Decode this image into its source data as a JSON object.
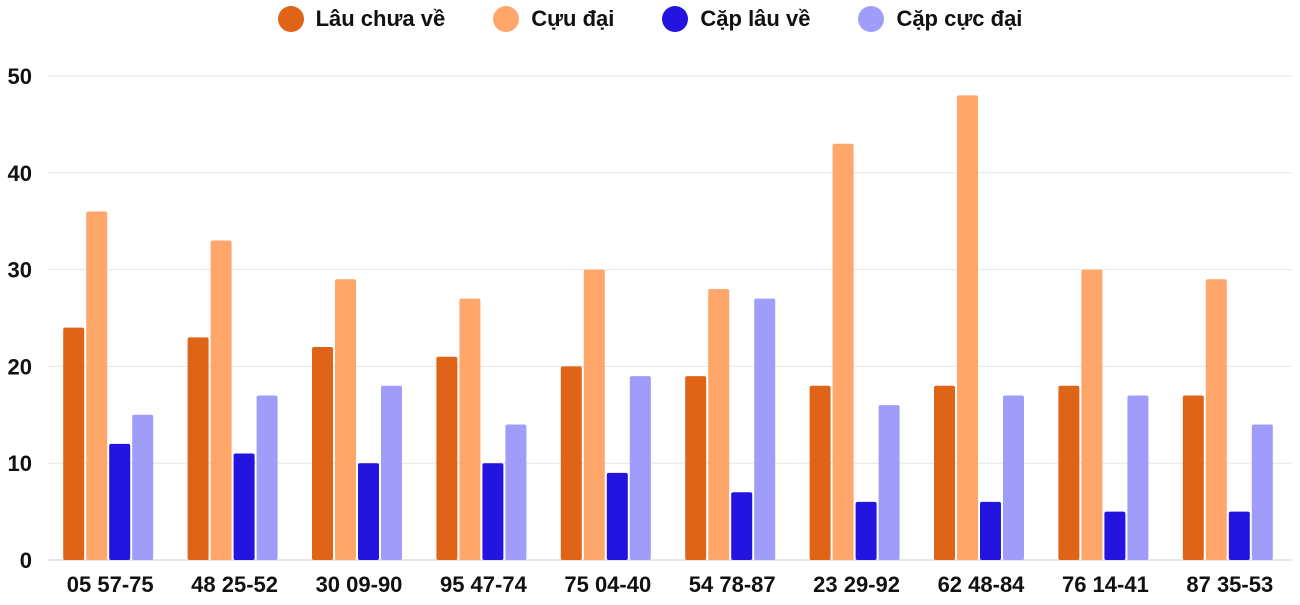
{
  "chart_data": {
    "type": "bar",
    "title": "",
    "xlabel": "",
    "ylabel": "",
    "ylim": [
      0,
      50
    ],
    "yticks": [
      0,
      10,
      20,
      30,
      40,
      50
    ],
    "grid": true,
    "legend_position": "top",
    "categories": [
      "05 57-75",
      "48 25-52",
      "30 09-90",
      "95 47-74",
      "75 04-40",
      "54 78-87",
      "23 29-92",
      "62 48-84",
      "76 14-41",
      "87 35-53"
    ],
    "series": [
      {
        "name": "Lâu chưa về",
        "color": "#e06417",
        "values": [
          24,
          23,
          22,
          21,
          20,
          19,
          18,
          18,
          18,
          17
        ]
      },
      {
        "name": "Cựu đại",
        "color": "#ffa66b",
        "values": [
          36,
          33,
          29,
          27,
          30,
          28,
          43,
          48,
          30,
          29
        ]
      },
      {
        "name": "Cặp lâu về",
        "color": "#2414e0",
        "values": [
          12,
          11,
          10,
          10,
          9,
          7,
          6,
          6,
          5,
          5
        ]
      },
      {
        "name": "Cặp cực đại",
        "color": "#a09cfa",
        "values": [
          15,
          17,
          18,
          14,
          19,
          27,
          16,
          17,
          17,
          14
        ]
      }
    ]
  }
}
